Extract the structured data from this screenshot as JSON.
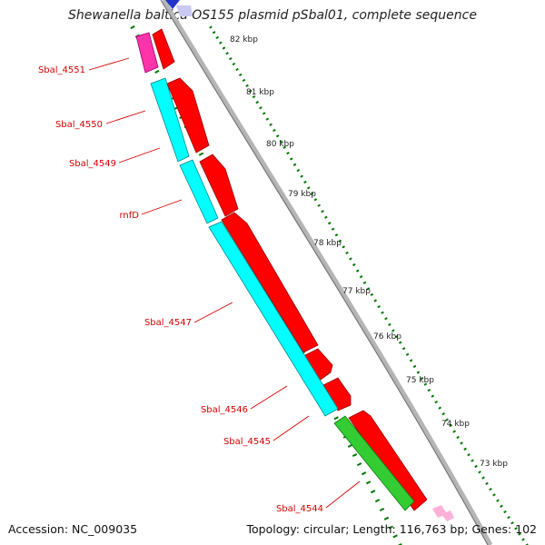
{
  "map": {
    "title": "Shewanella baltica OS155 plasmid pSbal01, complete sequence",
    "accession_text": "Accession: NC_009035",
    "summary_text": "Topology: circular; Length: 116,763 bp; Genes: 102"
  },
  "colors": {
    "forward_cds": "#ff0000",
    "reverse_cds": "#00ffff",
    "green_feature": "#33cc33",
    "pink_feature": "#ff33aa",
    "backbone": "#9a9a9a",
    "tick": "#007700",
    "label": "#d40000"
  },
  "scale_labels": [
    "82 kbp",
    "81 kbp",
    "80 kbp",
    "79 kbp",
    "78 kbp",
    "77 kbp",
    "76 kbp",
    "75 kbp",
    "74 kbp",
    "73 kbp"
  ],
  "gene_labels": [
    "Sbal_4551",
    "Sbal_4550",
    "Sbal_4549",
    "rnfD",
    "Sbal_4547",
    "Sbal_4546",
    "Sbal_4545",
    "Sbal_4544"
  ]
}
